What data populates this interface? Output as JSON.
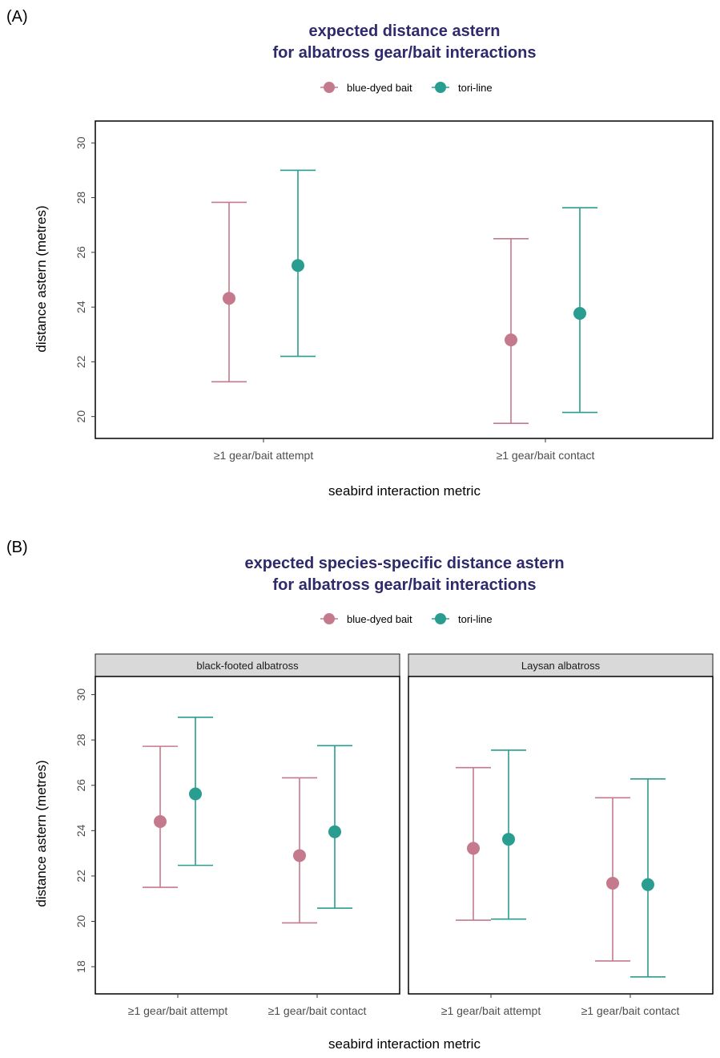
{
  "colors": {
    "blue_dyed_bait": "#c47a8c",
    "tori_line": "#2a9d91",
    "title": "#2e2a6b"
  },
  "chart_data": [
    {
      "type": "errorbar",
      "panel_label": "(A)",
      "title_line1": "expected distance astern",
      "title_line2": "for albatross gear/bait interactions",
      "xlabel": "seabird interaction metric",
      "ylabel": "distance astern (metres)",
      "ylim": [
        19.2,
        30.8
      ],
      "yticks": [
        "20",
        "22",
        "24",
        "26",
        "28",
        "30"
      ],
      "legend": [
        "blue-dyed bait",
        "tori-line"
      ],
      "categories": [
        "≥1 gear/bait attempt",
        "≥1 gear/bait contact"
      ],
      "series": [
        {
          "name": "blue-dyed bait",
          "mean": [
            24.32,
            22.8
          ],
          "lower": [
            21.27,
            19.75
          ],
          "upper": [
            27.83,
            26.5
          ]
        },
        {
          "name": "tori-line",
          "mean": [
            25.52,
            23.77
          ],
          "lower": [
            22.2,
            20.15
          ],
          "upper": [
            29.0,
            27.63
          ]
        }
      ]
    },
    {
      "type": "errorbar",
      "panel_label": "(B)",
      "title_line1": "expected species-specific distance astern",
      "title_line2": "for albatross gear/bait interactions",
      "xlabel": "seabird interaction metric",
      "ylabel": "distance astern (metres)",
      "ylim": [
        16.8,
        30.8
      ],
      "yticks": [
        "18",
        "20",
        "22",
        "24",
        "26",
        "28",
        "30"
      ],
      "legend": [
        "blue-dyed bait",
        "tori-line"
      ],
      "categories": [
        "≥1 gear/bait attempt",
        "≥1 gear/bait contact"
      ],
      "facets": [
        {
          "name": "black-footed albatross",
          "series": [
            {
              "name": "blue-dyed bait",
              "mean": [
                24.4,
                22.9
              ],
              "lower": [
                21.5,
                19.93
              ],
              "upper": [
                27.72,
                26.33
              ]
            },
            {
              "name": "tori-line",
              "mean": [
                25.62,
                23.95
              ],
              "lower": [
                22.47,
                20.58
              ],
              "upper": [
                29.0,
                27.75
              ]
            }
          ]
        },
        {
          "name": "Laysan albatross",
          "series": [
            {
              "name": "blue-dyed bait",
              "mean": [
                23.22,
                21.68
              ],
              "lower": [
                20.05,
                18.25
              ],
              "upper": [
                26.78,
                25.45
              ]
            },
            {
              "name": "tori-line",
              "mean": [
                23.62,
                21.62
              ],
              "lower": [
                20.1,
                17.55
              ],
              "upper": [
                27.55,
                26.28
              ]
            }
          ]
        }
      ]
    }
  ]
}
